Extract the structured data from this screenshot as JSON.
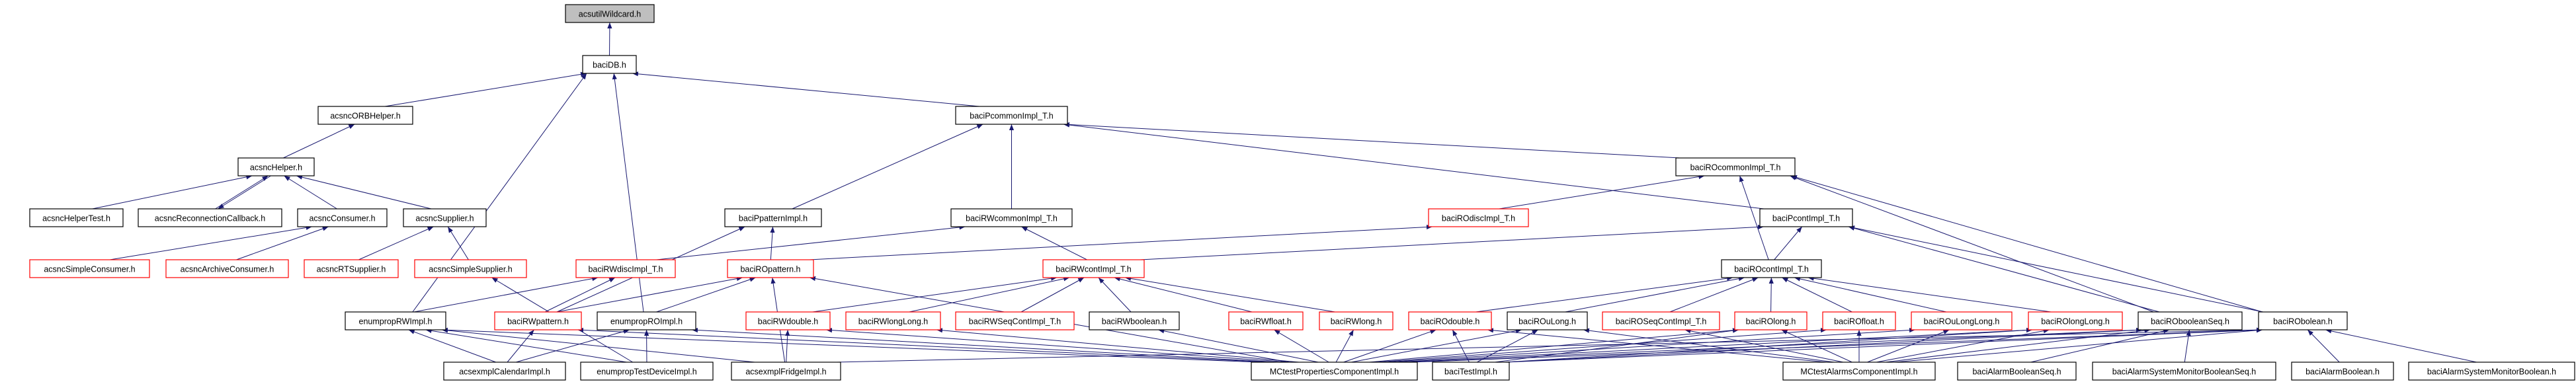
{
  "graph": {
    "edge_color": "#191970",
    "highlight_border_color": "#ff0000",
    "root_fill": "#bfbfbf",
    "nodes": [
      {
        "id": "wildcard",
        "label": "acsutilWildcard.h",
        "style": "root"
      },
      {
        "id": "baciDB",
        "label": "baciDB.h",
        "style": "normal"
      },
      {
        "id": "orbHelper",
        "label": "acsncORBHelper.h",
        "style": "normal"
      },
      {
        "id": "pcommon",
        "label": "baciPcommonImpl_T.h",
        "style": "normal"
      },
      {
        "id": "ncHelper",
        "label": "acsncHelper.h",
        "style": "normal"
      },
      {
        "id": "rocommon",
        "label": "baciROcommonImpl_T.h",
        "style": "normal"
      },
      {
        "id": "helperTest",
        "label": "acsncHelperTest.h",
        "style": "normal"
      },
      {
        "id": "reconnect",
        "label": "acsncReconnectionCallback.h",
        "style": "normal"
      },
      {
        "id": "consumer",
        "label": "acsncConsumer.h",
        "style": "normal"
      },
      {
        "id": "supplier",
        "label": "acsncSupplier.h",
        "style": "normal"
      },
      {
        "id": "ppattern",
        "label": "baciPpatternImpl.h",
        "style": "normal"
      },
      {
        "id": "rwcommon",
        "label": "baciRWcommonImpl_T.h",
        "style": "normal"
      },
      {
        "id": "rodisc",
        "label": "baciROdiscImpl_T.h",
        "style": "red"
      },
      {
        "id": "pcont",
        "label": "baciPcontImpl_T.h",
        "style": "normal"
      },
      {
        "id": "simpleConsumer",
        "label": "acsncSimpleConsumer.h",
        "style": "red"
      },
      {
        "id": "archiveConsumer",
        "label": "acsncArchiveConsumer.h",
        "style": "red"
      },
      {
        "id": "rtSupplier",
        "label": "acsncRTSupplier.h",
        "style": "red"
      },
      {
        "id": "simpleSupplier",
        "label": "acsncSimpleSupplier.h",
        "style": "red"
      },
      {
        "id": "rwdisc",
        "label": "baciRWdiscImpl_T.h",
        "style": "red"
      },
      {
        "id": "ropattern",
        "label": "baciROpattern.h",
        "style": "red"
      },
      {
        "id": "rwcont",
        "label": "baciRWcontImpl_T.h",
        "style": "red"
      },
      {
        "id": "rocont",
        "label": "baciROcontImpl_T.h",
        "style": "normal"
      },
      {
        "id": "enumRW",
        "label": "enumpropRWImpl.h",
        "style": "normal"
      },
      {
        "id": "rwpattern",
        "label": "baciRWpattern.h",
        "style": "red"
      },
      {
        "id": "enumRO",
        "label": "enumpropROImpl.h",
        "style": "normal"
      },
      {
        "id": "rwdouble",
        "label": "baciRWdouble.h",
        "style": "red"
      },
      {
        "id": "rwlonglong",
        "label": "baciRWlongLong.h",
        "style": "red"
      },
      {
        "id": "rwseqcont",
        "label": "baciRWSeqContImpl_T.h",
        "style": "red"
      },
      {
        "id": "rwboolean",
        "label": "baciRWboolean.h",
        "style": "normal"
      },
      {
        "id": "rwfloat",
        "label": "baciRWfloat.h",
        "style": "red"
      },
      {
        "id": "rwlong",
        "label": "baciRWlong.h",
        "style": "red"
      },
      {
        "id": "rodouble",
        "label": "baciROdouble.h",
        "style": "red"
      },
      {
        "id": "roulong",
        "label": "baciROuLong.h",
        "style": "normal"
      },
      {
        "id": "roseqcont",
        "label": "baciROSeqContImpl_T.h",
        "style": "red"
      },
      {
        "id": "rolong",
        "label": "baciROlong.h",
        "style": "red"
      },
      {
        "id": "rofloat",
        "label": "baciROfloat.h",
        "style": "red"
      },
      {
        "id": "roulonglong",
        "label": "baciROuLongLong.h",
        "style": "red"
      },
      {
        "id": "rolonglong",
        "label": "baciROlongLong.h",
        "style": "red"
      },
      {
        "id": "roboolseq",
        "label": "baciRObooleanSeq.h",
        "style": "normal"
      },
      {
        "id": "robool",
        "label": "baciRObolean.h",
        "style": "normal"
      },
      {
        "id": "calendar",
        "label": "acsexmplCalendarImpl.h",
        "style": "normal"
      },
      {
        "id": "testDevice",
        "label": "enumpropTestDeviceImpl.h",
        "style": "normal"
      },
      {
        "id": "fridge",
        "label": "acsexmplFridgeImpl.h",
        "style": "normal"
      },
      {
        "id": "mcProps",
        "label": "MCtestPropertiesComponentImpl.h",
        "style": "normal"
      },
      {
        "id": "testImpl",
        "label": "baciTestImpl.h",
        "style": "normal"
      },
      {
        "id": "mcAlarms",
        "label": "MCtestAlarmsComponentImpl.h",
        "style": "normal"
      },
      {
        "id": "alarmBoolSeq",
        "label": "baciAlarmBooleanSeq.h",
        "style": "normal"
      },
      {
        "id": "asmBoolSeq",
        "label": "baciAlarmSystemMonitorBooleanSeq.h",
        "style": "normal"
      },
      {
        "id": "alarmBool",
        "label": "baciAlarmBoolean.h",
        "style": "normal"
      },
      {
        "id": "asmBool",
        "label": "baciAlarmSystemMonitorBoolean.h",
        "style": "normal"
      }
    ],
    "edges": [
      [
        "baciDB",
        "wildcard"
      ],
      [
        "orbHelper",
        "baciDB"
      ],
      [
        "pcommon",
        "baciDB"
      ],
      [
        "enumRW",
        "baciDB"
      ],
      [
        "enumRO",
        "baciDB"
      ],
      [
        "ncHelper",
        "orbHelper"
      ],
      [
        "helperTest",
        "ncHelper"
      ],
      [
        "reconnect",
        "ncHelper"
      ],
      [
        "ncHelper",
        "reconnect"
      ],
      [
        "consumer",
        "ncHelper"
      ],
      [
        "supplier",
        "ncHelper"
      ],
      [
        "simpleConsumer",
        "consumer"
      ],
      [
        "archiveConsumer",
        "consumer"
      ],
      [
        "rtSupplier",
        "supplier"
      ],
      [
        "simpleSupplier",
        "supplier"
      ],
      [
        "ppattern",
        "pcommon"
      ],
      [
        "rwcommon",
        "pcommon"
      ],
      [
        "rocommon",
        "pcommon"
      ],
      [
        "pcont",
        "pcommon"
      ],
      [
        "rodisc",
        "rocommon"
      ],
      [
        "rocont",
        "rocommon"
      ],
      [
        "roboolseq",
        "rocommon"
      ],
      [
        "robool",
        "rocommon"
      ],
      [
        "rwdisc",
        "rwcommon"
      ],
      [
        "rwcont",
        "rwcommon"
      ],
      [
        "ropattern",
        "ppattern"
      ],
      [
        "ropattern",
        "rodisc"
      ],
      [
        "rwcont",
        "pcont"
      ],
      [
        "rocont",
        "pcont"
      ],
      [
        "roboolseq",
        "pcont"
      ],
      [
        "robool",
        "pcont"
      ],
      [
        "rwpattern",
        "rwdisc"
      ],
      [
        "rwpattern",
        "ropattern"
      ],
      [
        "rwpattern",
        "ppattern"
      ],
      [
        "enumRW",
        "rwdisc"
      ],
      [
        "enumRO",
        "ropattern"
      ],
      [
        "rwdouble",
        "rwcont"
      ],
      [
        "rwlonglong",
        "rwcont"
      ],
      [
        "rwseqcont",
        "rwcont"
      ],
      [
        "rwboolean",
        "rwcont"
      ],
      [
        "rwfloat",
        "rwcont"
      ],
      [
        "rwlong",
        "rwcont"
      ],
      [
        "rodouble",
        "rocont"
      ],
      [
        "roulong",
        "rocont"
      ],
      [
        "roseqcont",
        "rocont"
      ],
      [
        "rolong",
        "rocont"
      ],
      [
        "rofloat",
        "rocont"
      ],
      [
        "roulonglong",
        "rocont"
      ],
      [
        "rolonglong",
        "rocont"
      ],
      [
        "calendar",
        "enumRW"
      ],
      [
        "calendar",
        "rwpattern"
      ],
      [
        "calendar",
        "enumRO"
      ],
      [
        "testDevice",
        "enumRW"
      ],
      [
        "testDevice",
        "enumRO"
      ],
      [
        "testDevice",
        "simpleSupplier"
      ],
      [
        "fridge",
        "rwdouble"
      ],
      [
        "fridge",
        "ropattern"
      ],
      [
        "fridge",
        "enumRW"
      ],
      [
        "fridge",
        "robool"
      ],
      [
        "mcProps",
        "enumRW"
      ],
      [
        "mcProps",
        "rwpattern"
      ],
      [
        "mcProps",
        "enumRO"
      ],
      [
        "mcProps",
        "rwdouble"
      ],
      [
        "mcProps",
        "rwlonglong"
      ],
      [
        "mcProps",
        "rwboolean"
      ],
      [
        "mcProps",
        "rwfloat"
      ],
      [
        "mcProps",
        "rwlong"
      ],
      [
        "mcProps",
        "rodouble"
      ],
      [
        "mcProps",
        "roulong"
      ],
      [
        "mcProps",
        "rolong"
      ],
      [
        "mcProps",
        "rofloat"
      ],
      [
        "mcProps",
        "roulonglong"
      ],
      [
        "mcProps",
        "rolonglong"
      ],
      [
        "mcProps",
        "roboolseq"
      ],
      [
        "mcProps",
        "robool"
      ],
      [
        "mcProps",
        "ropattern"
      ],
      [
        "testImpl",
        "rodouble"
      ],
      [
        "testImpl",
        "roulong"
      ],
      [
        "testImpl",
        "rolong"
      ],
      [
        "testImpl",
        "rolonglong"
      ],
      [
        "testImpl",
        "roboolseq"
      ],
      [
        "testImpl",
        "robool"
      ],
      [
        "mcAlarms",
        "rodouble"
      ],
      [
        "mcAlarms",
        "roulong"
      ],
      [
        "mcAlarms",
        "rolong"
      ],
      [
        "mcAlarms",
        "rofloat"
      ],
      [
        "mcAlarms",
        "roulonglong"
      ],
      [
        "mcAlarms",
        "rolonglong"
      ],
      [
        "mcAlarms",
        "roboolseq"
      ],
      [
        "mcAlarms",
        "robool"
      ],
      [
        "mcAlarms",
        "roseqcont"
      ],
      [
        "alarmBoolSeq",
        "roboolseq"
      ],
      [
        "asmBoolSeq",
        "roboolseq"
      ],
      [
        "alarmBool",
        "robool"
      ],
      [
        "asmBool",
        "robool"
      ]
    ]
  }
}
